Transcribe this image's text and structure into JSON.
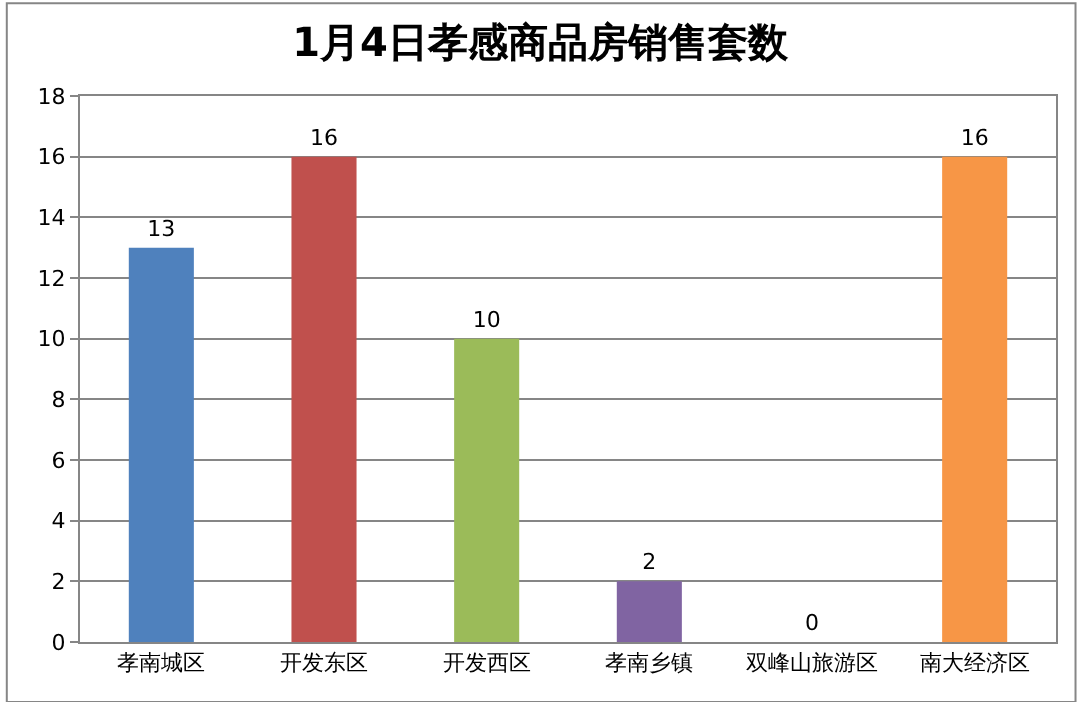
{
  "chart_data": {
    "type": "bar",
    "title": "1月4日孝感商品房销售套数",
    "categories": [
      "孝南城区",
      "开发东区",
      "开发西区",
      "孝南乡镇",
      "双峰山旅游区",
      "南大经济区"
    ],
    "values": [
      13,
      16,
      10,
      2,
      0,
      16
    ],
    "colors": [
      "#4f81bd",
      "#c0504d",
      "#9bbb59",
      "#8064a2",
      "#4bacc6",
      "#f79646"
    ],
    "ylim": [
      0,
      18
    ],
    "yticks": [
      0,
      2,
      4,
      6,
      8,
      10,
      12,
      14,
      16,
      18
    ],
    "grid": "y",
    "data_labels": true,
    "legend": false
  }
}
